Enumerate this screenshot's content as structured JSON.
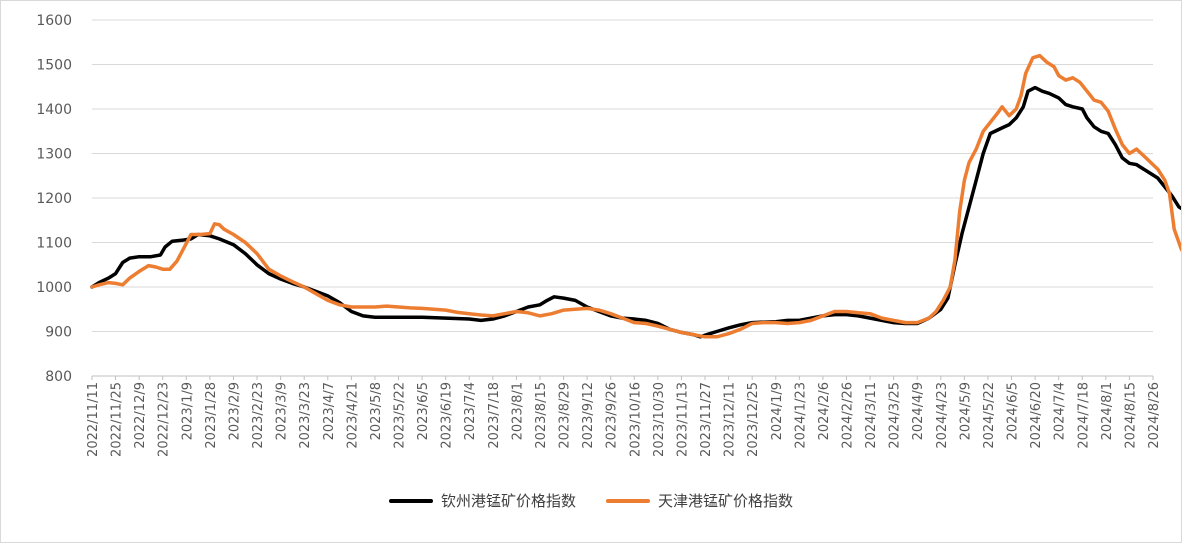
{
  "chart_data": {
    "type": "line",
    "title": "",
    "xlabel": "",
    "ylabel": "",
    "ylim": [
      800,
      1600
    ],
    "yticks": [
      800,
      900,
      1000,
      1100,
      1200,
      1300,
      1400,
      1500,
      1600
    ],
    "grid": "horizontal",
    "legend_position": "bottom",
    "x_tick_labels": [
      "2022/11/11",
      "2022/11/25",
      "2022/12/9",
      "2022/12/23",
      "2023/1/9",
      "2023/1/28",
      "2023/2/9",
      "2023/2/23",
      "2023/3/9",
      "2023/3/23",
      "2023/4/7",
      "2023/4/21",
      "2023/5/8",
      "2023/5/22",
      "2023/6/5",
      "2023/6/19",
      "2023/7/4",
      "2023/7/18",
      "2023/8/1",
      "2023/8/15",
      "2023/8/29",
      "2023/9/12",
      "2023/9/26",
      "2023/10/16",
      "2023/10/30",
      "2023/11/13",
      "2023/11/27",
      "2023/12/11",
      "2023/12/25",
      "2024/1/9",
      "2024/1/23",
      "2024/2/6",
      "2024/2/26",
      "2024/3/11",
      "2024/3/25",
      "2024/4/9",
      "2024/4/23",
      "2024/5/9",
      "2024/5/22",
      "2024/6/5",
      "2024/6/20",
      "2024/7/4",
      "2024/7/18",
      "2024/8/1",
      "2024/8/15",
      "2024/8/26"
    ],
    "series": [
      {
        "name": "钦州港锰矿价格指数",
        "color": "#000000",
        "points": [
          [
            0,
            1000
          ],
          [
            0.3,
            1010
          ],
          [
            0.7,
            1020
          ],
          [
            1.0,
            1030
          ],
          [
            1.3,
            1055
          ],
          [
            1.6,
            1065
          ],
          [
            2.0,
            1068
          ],
          [
            2.5,
            1068
          ],
          [
            2.9,
            1072
          ],
          [
            3.1,
            1090
          ],
          [
            3.4,
            1103
          ],
          [
            3.8,
            1105
          ],
          [
            4.2,
            1108
          ],
          [
            4.5,
            1118
          ],
          [
            5.0,
            1115
          ],
          [
            5.4,
            1108
          ],
          [
            6.0,
            1095
          ],
          [
            6.5,
            1075
          ],
          [
            7.0,
            1050
          ],
          [
            7.5,
            1030
          ],
          [
            8.0,
            1018
          ],
          [
            8.5,
            1008
          ],
          [
            9.0,
            1000
          ],
          [
            9.5,
            990
          ],
          [
            10.0,
            980
          ],
          [
            10.5,
            965
          ],
          [
            11.0,
            945
          ],
          [
            11.5,
            935
          ],
          [
            12.0,
            932
          ],
          [
            13.0,
            932
          ],
          [
            14.0,
            932
          ],
          [
            15.0,
            930
          ],
          [
            16.0,
            928
          ],
          [
            16.5,
            925
          ],
          [
            17.0,
            928
          ],
          [
            17.5,
            935
          ],
          [
            18.0,
            945
          ],
          [
            18.5,
            955
          ],
          [
            19.0,
            960
          ],
          [
            19.3,
            970
          ],
          [
            19.6,
            978
          ],
          [
            20.0,
            975
          ],
          [
            20.5,
            970
          ],
          [
            21.0,
            955
          ],
          [
            21.5,
            945
          ],
          [
            22.0,
            935
          ],
          [
            22.5,
            930
          ],
          [
            23.0,
            928
          ],
          [
            23.5,
            925
          ],
          [
            24.0,
            918
          ],
          [
            24.5,
            905
          ],
          [
            25.0,
            898
          ],
          [
            25.5,
            893
          ],
          [
            25.8,
            888
          ],
          [
            26.2,
            895
          ],
          [
            26.5,
            900
          ],
          [
            27.0,
            908
          ],
          [
            27.5,
            915
          ],
          [
            28.0,
            920
          ],
          [
            29.0,
            922
          ],
          [
            29.5,
            925
          ],
          [
            30.0,
            925
          ],
          [
            30.5,
            930
          ],
          [
            31.0,
            935
          ],
          [
            31.5,
            938
          ],
          [
            32.0,
            938
          ],
          [
            32.5,
            935
          ],
          [
            33.0,
            930
          ],
          [
            33.5,
            925
          ],
          [
            34.0,
            920
          ],
          [
            34.5,
            918
          ],
          [
            35.0,
            918
          ],
          [
            35.5,
            930
          ],
          [
            36.0,
            950
          ],
          [
            36.3,
            975
          ],
          [
            36.6,
            1050
          ],
          [
            36.9,
            1120
          ],
          [
            37.2,
            1180
          ],
          [
            37.5,
            1240
          ],
          [
            37.8,
            1300
          ],
          [
            38.1,
            1345
          ],
          [
            38.5,
            1355
          ],
          [
            38.9,
            1365
          ],
          [
            39.2,
            1380
          ],
          [
            39.5,
            1405
          ],
          [
            39.7,
            1440
          ],
          [
            40.0,
            1448
          ],
          [
            40.3,
            1440
          ],
          [
            40.6,
            1435
          ],
          [
            41.0,
            1425
          ],
          [
            41.3,
            1410
          ],
          [
            41.6,
            1405
          ],
          [
            42.0,
            1400
          ],
          [
            42.2,
            1380
          ],
          [
            42.5,
            1360
          ],
          [
            42.8,
            1350
          ],
          [
            43.1,
            1345
          ],
          [
            43.4,
            1320
          ],
          [
            43.7,
            1290
          ],
          [
            44.0,
            1278
          ],
          [
            44.3,
            1275
          ],
          [
            44.6,
            1265
          ],
          [
            44.9,
            1255
          ],
          [
            45.2,
            1245
          ],
          [
            45.5,
            1225
          ],
          [
            45.8,
            1205
          ],
          [
            46.1,
            1180
          ],
          [
            46.4,
            1170
          ],
          [
            46.7,
            1160
          ],
          [
            47.0,
            1150
          ],
          [
            47.3,
            1140
          ],
          [
            47.6,
            1130
          ],
          [
            47.8,
            1115
          ]
        ]
      },
      {
        "name": "天津港锰矿价格指数",
        "color": "#ED7D31",
        "points": [
          [
            0,
            1000
          ],
          [
            0.3,
            1005
          ],
          [
            0.7,
            1010
          ],
          [
            1.0,
            1008
          ],
          [
            1.3,
            1005
          ],
          [
            1.6,
            1020
          ],
          [
            2.0,
            1035
          ],
          [
            2.4,
            1048
          ],
          [
            2.7,
            1045
          ],
          [
            3.0,
            1040
          ],
          [
            3.3,
            1040
          ],
          [
            3.6,
            1058
          ],
          [
            4.0,
            1098
          ],
          [
            4.2,
            1118
          ],
          [
            4.6,
            1118
          ],
          [
            5.0,
            1120
          ],
          [
            5.2,
            1142
          ],
          [
            5.4,
            1140
          ],
          [
            5.6,
            1130
          ],
          [
            6.0,
            1118
          ],
          [
            6.5,
            1100
          ],
          [
            7.0,
            1075
          ],
          [
            7.5,
            1040
          ],
          [
            8.0,
            1025
          ],
          [
            8.5,
            1012
          ],
          [
            9.0,
            1000
          ],
          [
            9.5,
            985
          ],
          [
            10.0,
            970
          ],
          [
            10.5,
            960
          ],
          [
            11.0,
            955
          ],
          [
            11.5,
            955
          ],
          [
            12.0,
            955
          ],
          [
            12.5,
            957
          ],
          [
            13.0,
            955
          ],
          [
            13.5,
            953
          ],
          [
            14.0,
            952
          ],
          [
            14.5,
            950
          ],
          [
            15.0,
            948
          ],
          [
            15.5,
            943
          ],
          [
            16.0,
            940
          ],
          [
            16.5,
            937
          ],
          [
            17.0,
            935
          ],
          [
            17.5,
            940
          ],
          [
            18.0,
            945
          ],
          [
            18.5,
            942
          ],
          [
            19.0,
            935
          ],
          [
            19.5,
            940
          ],
          [
            20.0,
            948
          ],
          [
            20.5,
            950
          ],
          [
            21.0,
            952
          ],
          [
            21.5,
            948
          ],
          [
            22.0,
            940
          ],
          [
            22.5,
            930
          ],
          [
            23.0,
            920
          ],
          [
            23.5,
            918
          ],
          [
            24.0,
            912
          ],
          [
            24.5,
            905
          ],
          [
            25.0,
            898
          ],
          [
            25.5,
            893
          ],
          [
            26.0,
            888
          ],
          [
            26.5,
            888
          ],
          [
            27.0,
            895
          ],
          [
            27.5,
            905
          ],
          [
            28.0,
            918
          ],
          [
            28.5,
            920
          ],
          [
            29.0,
            920
          ],
          [
            29.5,
            918
          ],
          [
            30.0,
            920
          ],
          [
            30.5,
            925
          ],
          [
            31.0,
            935
          ],
          [
            31.5,
            945
          ],
          [
            32.0,
            945
          ],
          [
            32.5,
            942
          ],
          [
            33.0,
            940
          ],
          [
            33.5,
            930
          ],
          [
            34.0,
            925
          ],
          [
            34.5,
            920
          ],
          [
            35.0,
            920
          ],
          [
            35.5,
            930
          ],
          [
            35.8,
            945
          ],
          [
            36.1,
            970
          ],
          [
            36.4,
            1000
          ],
          [
            36.6,
            1060
          ],
          [
            36.8,
            1170
          ],
          [
            37.0,
            1240
          ],
          [
            37.2,
            1280
          ],
          [
            37.5,
            1310
          ],
          [
            37.8,
            1350
          ],
          [
            38.1,
            1370
          ],
          [
            38.4,
            1390
          ],
          [
            38.6,
            1405
          ],
          [
            38.9,
            1385
          ],
          [
            39.2,
            1400
          ],
          [
            39.4,
            1430
          ],
          [
            39.6,
            1480
          ],
          [
            39.9,
            1515
          ],
          [
            40.2,
            1520
          ],
          [
            40.5,
            1505
          ],
          [
            40.8,
            1495
          ],
          [
            41.0,
            1475
          ],
          [
            41.3,
            1465
          ],
          [
            41.6,
            1470
          ],
          [
            41.9,
            1460
          ],
          [
            42.2,
            1440
          ],
          [
            42.5,
            1420
          ],
          [
            42.8,
            1415
          ],
          [
            43.1,
            1395
          ],
          [
            43.4,
            1355
          ],
          [
            43.7,
            1320
          ],
          [
            44.0,
            1300
          ],
          [
            44.3,
            1310
          ],
          [
            44.6,
            1295
          ],
          [
            44.9,
            1280
          ],
          [
            45.2,
            1265
          ],
          [
            45.5,
            1240
          ],
          [
            45.7,
            1210
          ],
          [
            45.9,
            1130
          ],
          [
            46.2,
            1085
          ],
          [
            46.5,
            1060
          ],
          [
            46.8,
            1050
          ],
          [
            47.1,
            1040
          ],
          [
            47.4,
            1037
          ],
          [
            47.8,
            1030
          ]
        ]
      }
    ]
  }
}
